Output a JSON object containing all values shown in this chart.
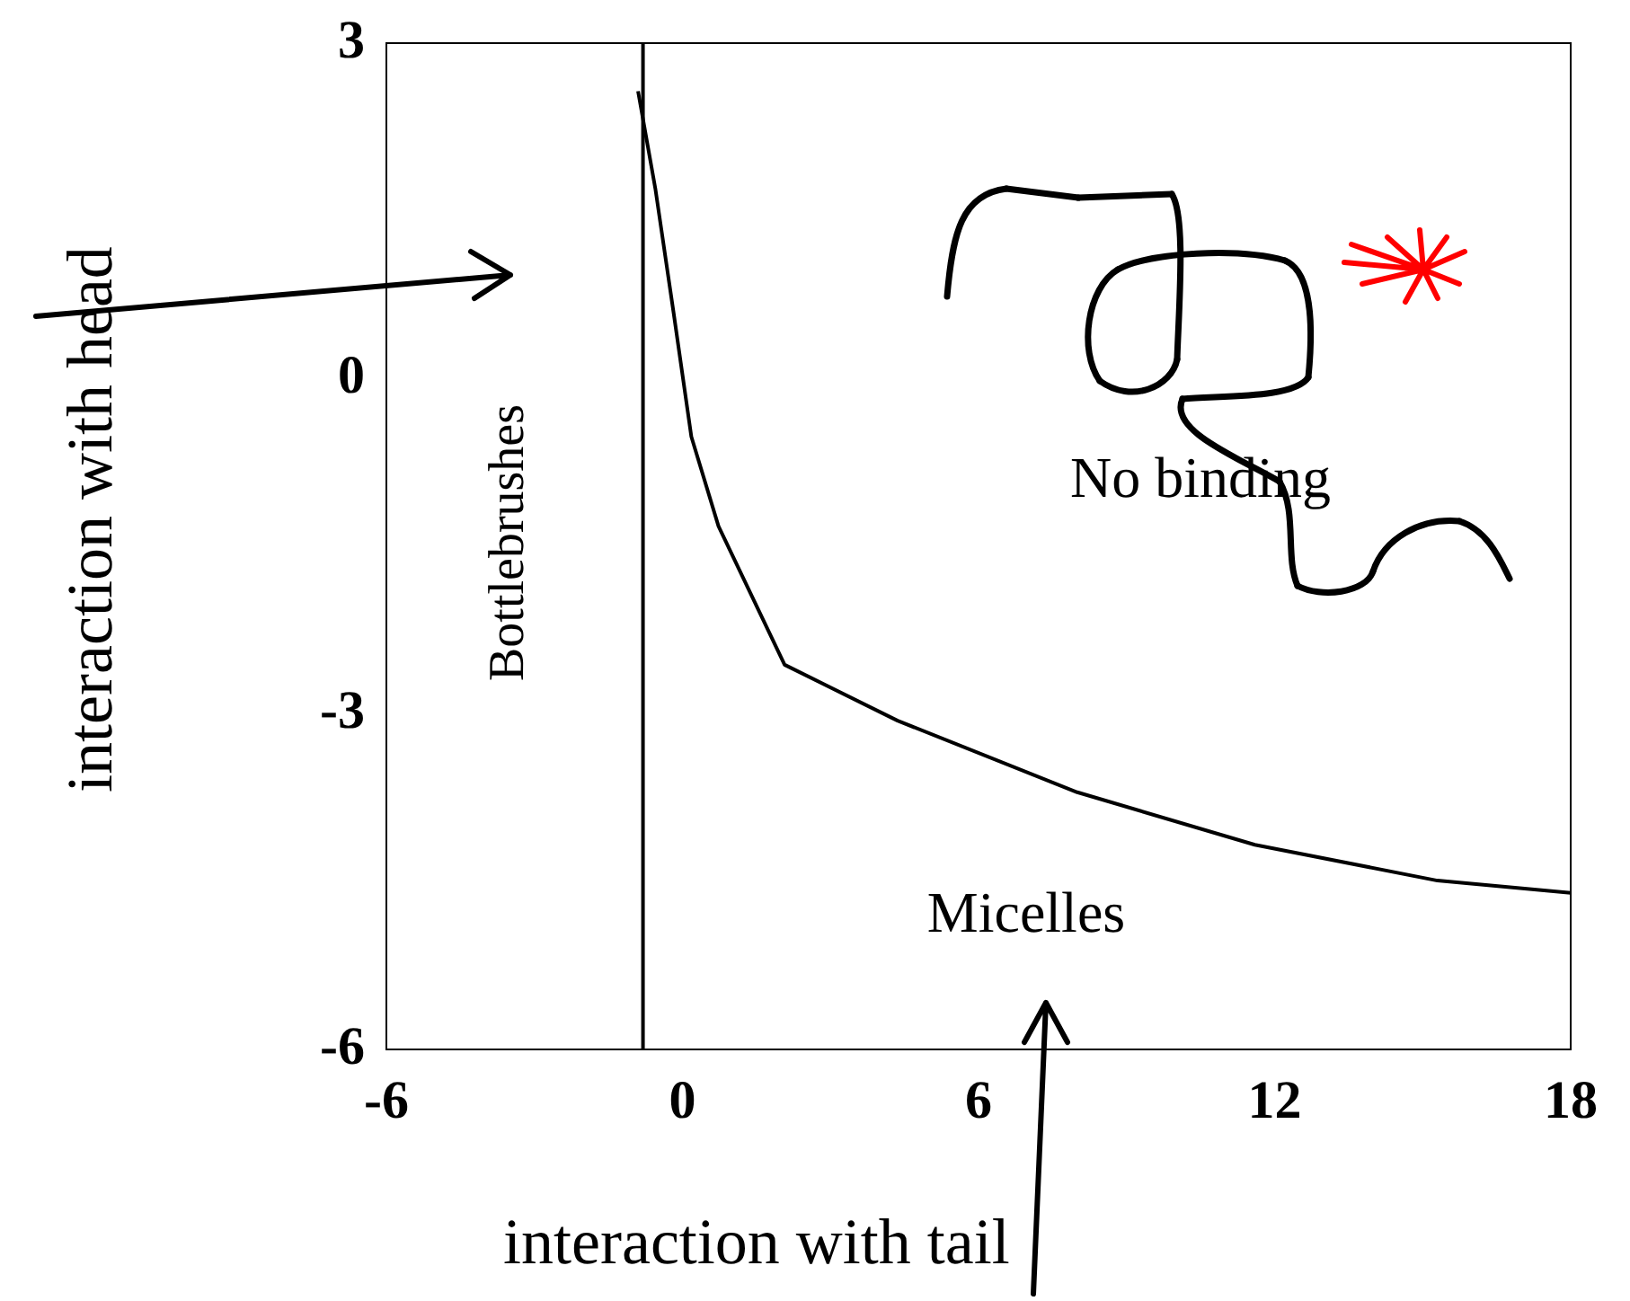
{
  "chart_data": {
    "type": "line",
    "xlabel": "interaction with tail",
    "ylabel": "interaction with head",
    "xlim": [
      -6,
      18
    ],
    "xticks": [
      -6,
      0,
      6,
      12,
      18
    ],
    "ylim": [
      -6,
      3
    ],
    "yticks": [
      -6,
      -3,
      0,
      3
    ],
    "grid": false,
    "legend": false,
    "marker": "none",
    "line_style": "solid",
    "series": [
      {
        "color": "#000000",
        "x": [
          -0.8,
          -0.8
        ],
        "values": [
          -6,
          3
        ]
      },
      {
        "color": "#000000",
        "x": [
          -0.9,
          -0.55,
          -0.18,
          0.18,
          0.73,
          2.07,
          4.36,
          8.0,
          11.6,
          15.3,
          18
        ],
        "values": [
          2.57,
          1.7,
          0.59,
          -0.52,
          -1.32,
          -2.56,
          -3.06,
          -3.7,
          -4.17,
          -4.49,
          -4.6
        ]
      }
    ],
    "annotations": [
      "No binding",
      "Bottlebrushes",
      "Micelles"
    ]
  }
}
